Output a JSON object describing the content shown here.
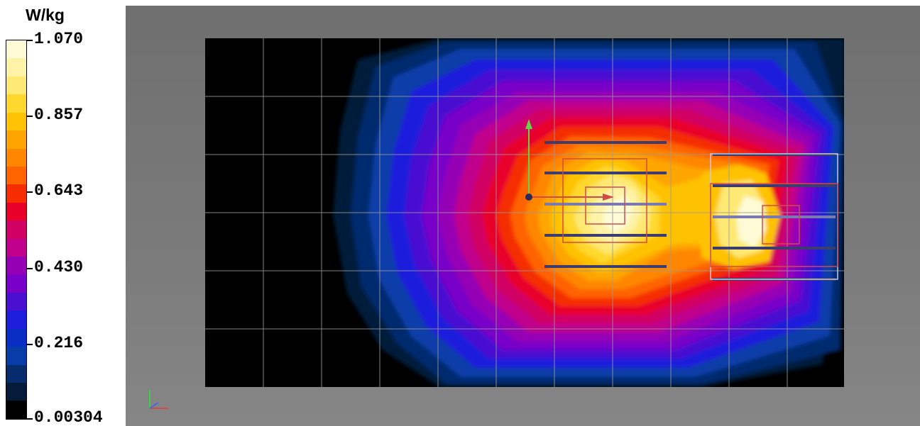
{
  "legend": {
    "unit": "W/kg",
    "ticks": [
      "1.070",
      "0.857",
      "0.643",
      "0.430",
      "0.216",
      "0.00304"
    ],
    "colors": [
      "#fffbd6",
      "#fff3a8",
      "#ffe975",
      "#ffd82e",
      "#ffc205",
      "#ffa500",
      "#ff8700",
      "#ff6400",
      "#f52d00",
      "#e8002a",
      "#d10064",
      "#c0008c",
      "#9600b5",
      "#7800c8",
      "#4a10d2",
      "#1e1edc",
      "#0a2ec4",
      "#083ca8",
      "#062c6e",
      "#041c3a",
      "#000000"
    ]
  },
  "axes_icon": "xyz-axes-icon"
}
